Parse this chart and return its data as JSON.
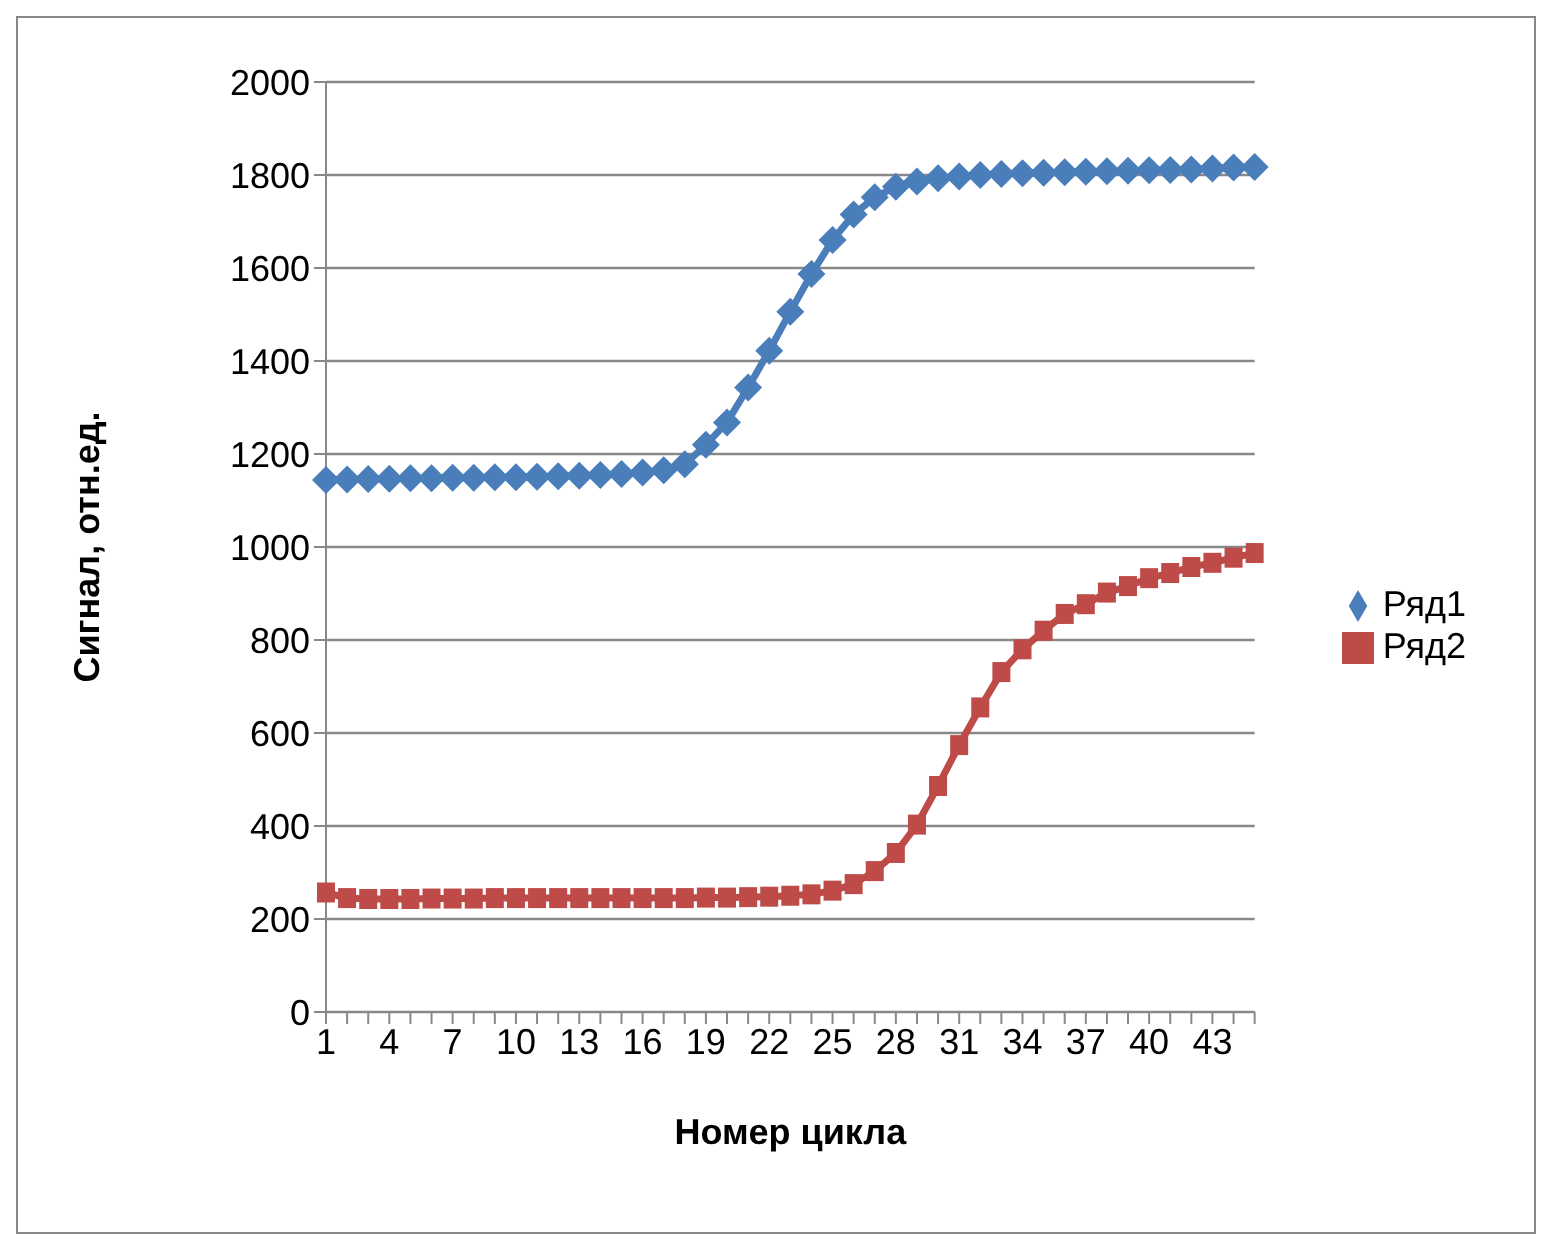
{
  "chart_data": {
    "type": "line",
    "xlabel": "Номер цикла",
    "ylabel": "Сигнал, отн.ед.",
    "categories": [
      "1",
      null,
      null,
      "4",
      null,
      null,
      "7",
      null,
      null,
      "10",
      null,
      null,
      "13",
      null,
      null,
      "16",
      null,
      null,
      "19",
      null,
      null,
      "22",
      null,
      null,
      "25",
      null,
      null,
      "28",
      null,
      null,
      "31",
      null,
      null,
      "34",
      null,
      null,
      "37",
      null,
      null,
      "40",
      null,
      null,
      "43",
      null,
      null
    ],
    "series": [
      {
        "name": "Ряд1",
        "color": "#4a7ebb",
        "marker": "diamond",
        "values": [
          1144,
          1145,
          1146,
          1147,
          1148,
          1148,
          1149,
          1149,
          1150,
          1150,
          1151,
          1152,
          1153,
          1155,
          1157,
          1160,
          1165,
          1178,
          1220,
          1268,
          1343,
          1422,
          1506,
          1587,
          1660,
          1715,
          1752,
          1775,
          1786,
          1793,
          1797,
          1800,
          1802,
          1804,
          1805,
          1806,
          1807,
          1808,
          1809,
          1810,
          1811,
          1812,
          1814,
          1816,
          1817
        ]
      },
      {
        "name": "Ряд2",
        "color": "#be4b48",
        "marker": "square",
        "values": [
          257,
          245,
          243,
          243,
          243,
          244,
          244,
          244,
          245,
          245,
          245,
          245,
          245,
          245,
          245,
          245,
          245,
          245,
          246,
          246,
          247,
          248,
          250,
          253,
          261,
          275,
          303,
          342,
          403,
          486,
          574,
          655,
          731,
          780,
          820,
          856,
          877,
          902,
          916,
          933,
          944,
          957,
          966,
          977,
          987
        ]
      }
    ],
    "ylim": [
      0,
      2000
    ],
    "yticks": [
      0,
      200,
      400,
      600,
      800,
      1000,
      1200,
      1400,
      1600,
      1800,
      2000
    ],
    "grid": "y",
    "legend": "right",
    "line_style": "solid"
  }
}
